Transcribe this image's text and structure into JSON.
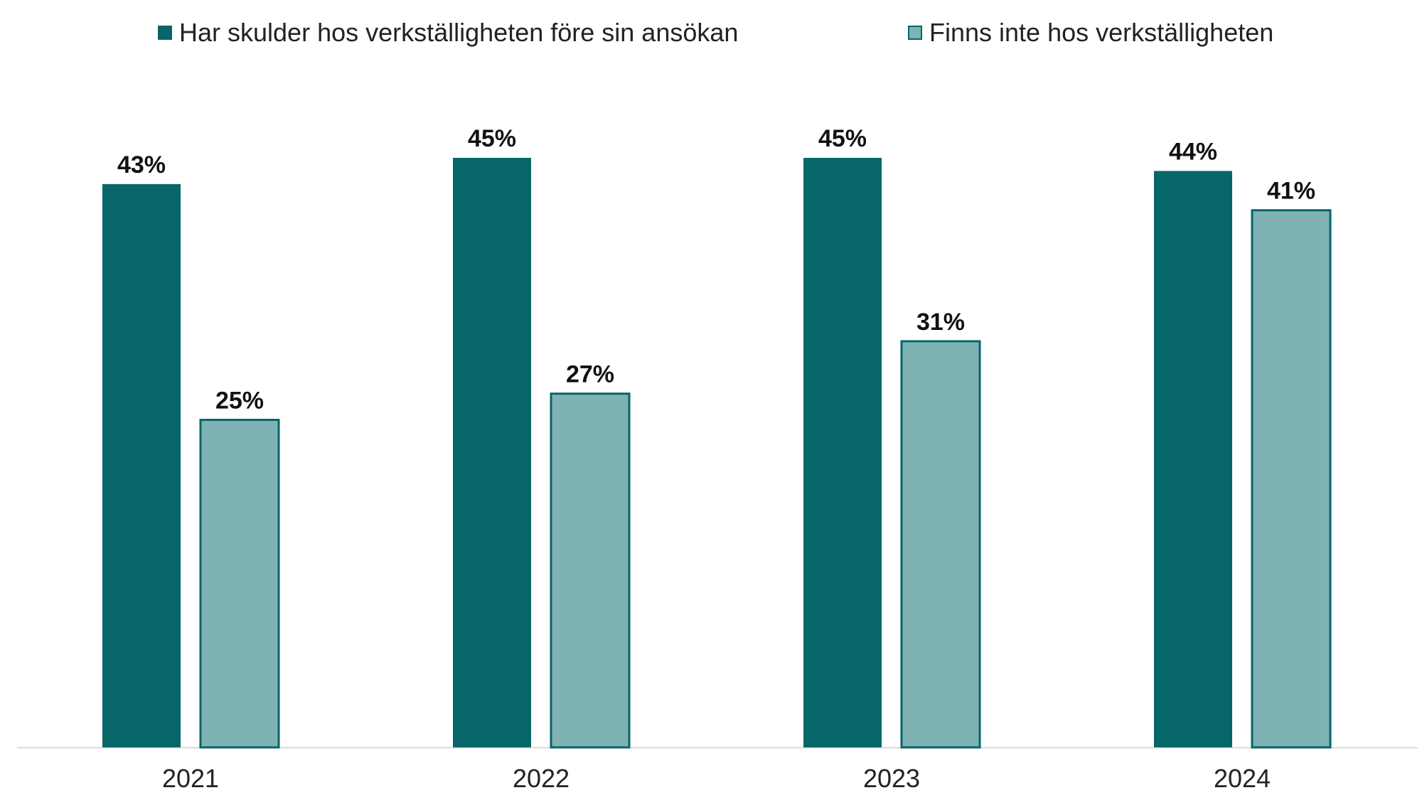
{
  "legend": {
    "series_1_label": "Har skulder hos verkställigheten före sin ansökan",
    "series_2_label": "Finns inte hos verkställigheten"
  },
  "colors": {
    "series_1": "#06666A",
    "series_2": "#7FB3B3",
    "series_2_border": "#06666A",
    "axis": "#D9D9D9"
  },
  "chart_data": {
    "type": "bar",
    "categories": [
      "2021",
      "2022",
      "2023",
      "2024"
    ],
    "series": [
      {
        "name": "Har skulder hos verkställigheten före sin ansökan",
        "values": [
          43,
          45,
          45,
          44
        ],
        "labels": [
          "43%",
          "45%",
          "45%",
          "44%"
        ]
      },
      {
        "name": "Finns inte hos verkställigheten",
        "values": [
          25,
          27,
          31,
          41
        ],
        "labels": [
          "25%",
          "27%",
          "31%",
          "41%"
        ]
      }
    ],
    "title": "",
    "xlabel": "",
    "ylabel": "",
    "ylim": [
      0,
      50
    ],
    "grid": false,
    "legend_position": "top"
  }
}
